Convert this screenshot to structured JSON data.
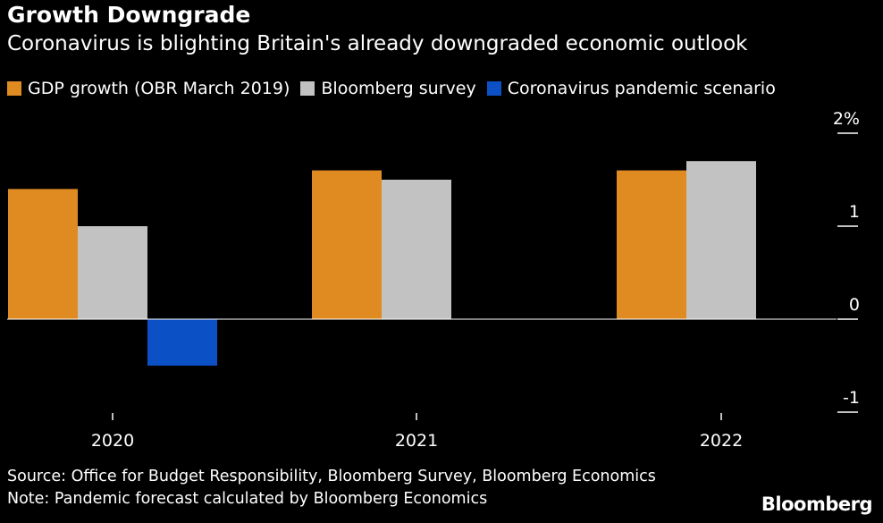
{
  "title": "Growth Downgrade",
  "subtitle": "Coronavirus is blighting Britain's already downgraded economic outlook",
  "legend": [
    {
      "label": "GDP growth (OBR March 2019)",
      "color": "#df8b22"
    },
    {
      "label": "Bloomberg survey",
      "color": "#c2c2c2"
    },
    {
      "label": "Coronavirus pandemic scenario",
      "color": "#0c50c5"
    }
  ],
  "chart_data": {
    "type": "bar",
    "categories": [
      "2020",
      "2021",
      "2022"
    ],
    "series": [
      {
        "name": "GDP growth (OBR March 2019)",
        "color": "#df8b22",
        "values": [
          1.4,
          1.6,
          1.6
        ]
      },
      {
        "name": "Bloomberg survey",
        "color": "#c2c2c2",
        "values": [
          1.0,
          1.5,
          1.7
        ]
      },
      {
        "name": "Coronavirus pandemic scenario",
        "color": "#0c50c5",
        "values": [
          -0.5,
          null,
          null
        ]
      }
    ],
    "ylim": [
      -1,
      2
    ],
    "yticks": [
      2,
      1,
      0,
      -1
    ],
    "ytick_labels": [
      "2%",
      "1",
      "0",
      "-1"
    ],
    "axis_position": "right",
    "xlabel": "",
    "ylabel": ""
  },
  "footer": {
    "source": "Source: Office for Budget Responsibility, Bloomberg Survey, Bloomberg Economics",
    "note": "Note: Pandemic forecast calculated by Bloomberg Economics",
    "brand": "Bloomberg"
  }
}
